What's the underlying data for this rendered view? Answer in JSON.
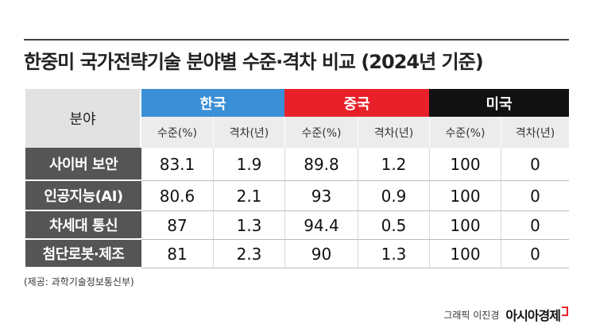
{
  "title": "한중미 국가전략기술 분야별 수준·격차 비교 (2024년 기준)",
  "table": {
    "corner": "분야",
    "groups": [
      "한국",
      "중국",
      "미국"
    ],
    "subheaders": [
      "수준(%)",
      "격차(년)",
      "수준(%)",
      "격차(년)",
      "수준(%)",
      "격차(년)"
    ],
    "rows": [
      {
        "label": "사이버 보안",
        "values": [
          83.1,
          1.9,
          89.8,
          1.2,
          100,
          0
        ]
      },
      {
        "label": "인공지능(AI)",
        "values": [
          80.6,
          2.1,
          93,
          0.9,
          100,
          0
        ]
      },
      {
        "label": "차세대 통신",
        "values": [
          87,
          1.3,
          94.4,
          0.5,
          100,
          0
        ]
      },
      {
        "label": "첨단로봇·제조",
        "values": [
          81,
          2.3,
          90,
          1.3,
          100,
          0
        ]
      }
    ]
  },
  "source": "(제공: 과학기술정보통신부)",
  "credit": {
    "graphic": "그래픽 이진경",
    "brand": "아시아경제"
  }
}
